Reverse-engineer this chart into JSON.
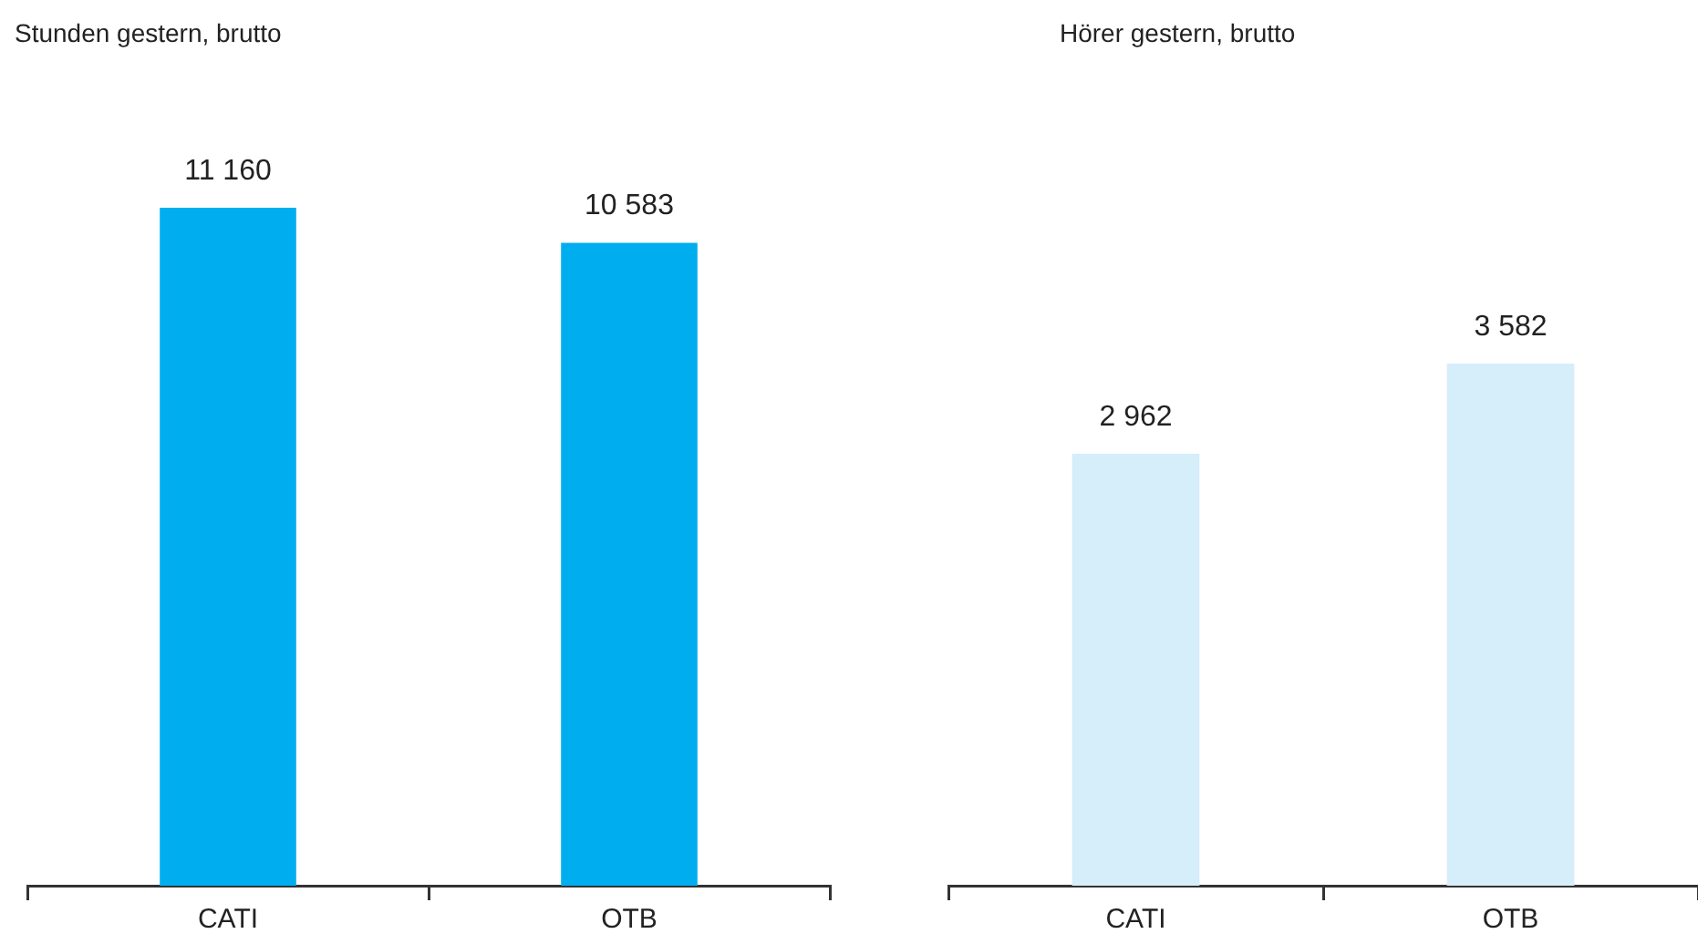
{
  "chart_data": [
    {
      "type": "bar",
      "title": "Stunden gestern, brutto",
      "categories": [
        "CATI",
        "OTB"
      ],
      "values": [
        11160,
        10583
      ],
      "value_labels": [
        "11 160",
        "10 583"
      ],
      "color": "#00aeef",
      "tick_labels": "x",
      "grid": false,
      "legend": false
    },
    {
      "type": "bar",
      "title": "Hörer gestern, brutto",
      "categories": [
        "CATI",
        "OTB"
      ],
      "values": [
        2962,
        3582
      ],
      "value_labels": [
        "2 962",
        "3 582"
      ],
      "color": "#d6edfa",
      "tick_labels": "x",
      "grid": false,
      "legend": false
    }
  ]
}
